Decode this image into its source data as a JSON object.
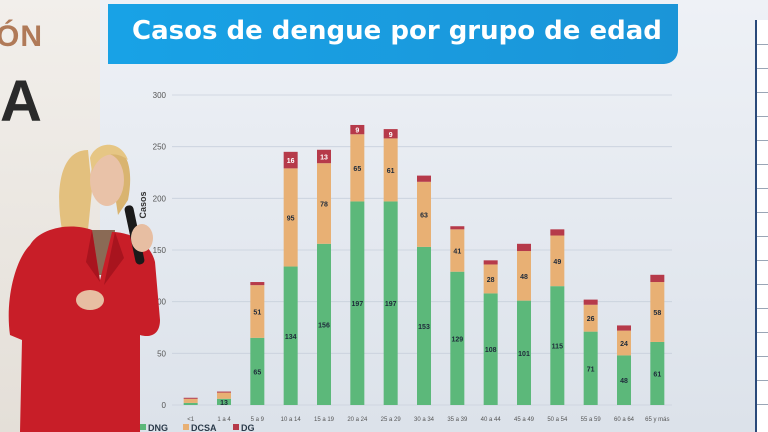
{
  "slide": {
    "title": "Casos de dengue por grupo de edad",
    "banner_top": "ÓN",
    "banner_big": "A"
  },
  "chart_data": {
    "type": "bar",
    "title": "Casos de dengue por grupo de edad",
    "ylabel": "Casos",
    "ylim": [
      0,
      300
    ],
    "yticks": [
      "0",
      "50",
      "100",
      "150",
      "200",
      "250",
      "300"
    ],
    "categories": [
      "<1",
      "1 a 4",
      "5 a 9",
      "10 a 14",
      "15 a 19",
      "20 a 24",
      "25 a 29",
      "30 a 34",
      "35 a 39",
      "40 a 44",
      "45 a 49",
      "50 a 54",
      "55 a 59",
      "60 a 64",
      "65 y más"
    ],
    "series": [
      {
        "name": "DNG",
        "color": "#5cb87a",
        "values": [
          2,
          6,
          65,
          134,
          156,
          197,
          197,
          153,
          129,
          108,
          101,
          115,
          71,
          48,
          61
        ]
      },
      {
        "name": "DCSA",
        "color": "#e8b074",
        "values": [
          4,
          6,
          51,
          95,
          78,
          65,
          61,
          63,
          41,
          28,
          48,
          49,
          26,
          24,
          58
        ]
      },
      {
        "name": "DG",
        "color": "#b63a4a",
        "values": [
          1,
          1,
          3,
          16,
          13,
          9,
          9,
          6,
          3,
          4,
          7,
          6,
          5,
          5,
          7
        ]
      }
    ],
    "bar_labels": {
      "DNG": [
        "",
        "13",
        "65",
        "134",
        "156",
        "197",
        "197",
        "153",
        "129",
        "108",
        "101",
        "115",
        "71",
        "48",
        "61"
      ],
      "DCSA": [
        "",
        "",
        "51",
        "95",
        "78",
        "65",
        "61",
        "63",
        "41",
        "28",
        "48",
        "49",
        "26",
        "24",
        "58"
      ],
      "DG": [
        "",
        "",
        "",
        "16",
        "13",
        "9",
        "9",
        "",
        "",
        "",
        "",
        "",
        "",
        "",
        ""
      ]
    },
    "legend": [
      "DNG",
      "DCSA",
      "DG"
    ],
    "legend_position": "bottom",
    "grid": true
  }
}
